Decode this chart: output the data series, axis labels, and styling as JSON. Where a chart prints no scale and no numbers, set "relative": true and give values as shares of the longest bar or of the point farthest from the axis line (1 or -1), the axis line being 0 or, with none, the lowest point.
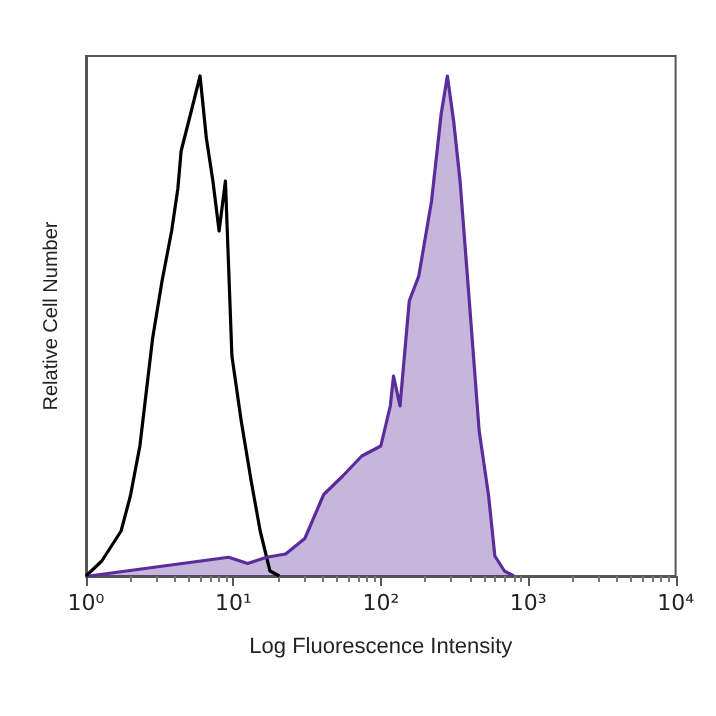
{
  "chart_data": {
    "type": "line",
    "xlabel": "Log Fluorescence Intensity",
    "ylabel": "Relative Cell Number",
    "log": "x",
    "relative": true,
    "xlim": [
      1,
      10000
    ],
    "xticks": [
      {
        "value": 1,
        "label": "10⁰"
      },
      {
        "value": 10,
        "label": "10¹"
      },
      {
        "value": 100,
        "label": "10²"
      },
      {
        "value": 1000,
        "label": "10³"
      },
      {
        "value": 10000,
        "label": "10⁴"
      }
    ],
    "grid": false,
    "marker": "none",
    "line_style": "solid",
    "series": [
      {
        "color": "#000000",
        "x": [
          1,
          1.28,
          1.73,
          2.0,
          2.32,
          2.83,
          3.28,
          3.81,
          4.2,
          4.42,
          5.13,
          5.94,
          6.56,
          7.26,
          8.0,
          8.83,
          9.77,
          11.3,
          13.2,
          15.2,
          17.7,
          20.5
        ],
        "values": [
          0,
          0.03,
          0.09,
          0.16,
          0.26,
          0.475,
          0.59,
          0.69,
          0.775,
          0.85,
          0.925,
          1.0,
          0.875,
          0.79,
          0.69,
          0.79,
          0.44,
          0.31,
          0.19,
          0.09,
          0.01,
          0
        ]
      },
      {
        "type": "area",
        "color": "#5b2d9c",
        "x": [
          1.05,
          9.29,
          12.5,
          16.8,
          22.6,
          30.5,
          41.0,
          55.2,
          74.3,
          100,
          116,
          122,
          135,
          156,
          181,
          221,
          257,
          283,
          312,
          345,
          401,
          465,
          539,
          594,
          690,
          800
        ],
        "values": [
          0,
          0.0375,
          0.025,
          0.0375,
          0.044,
          0.075,
          0.163,
          0.2,
          0.24,
          0.26,
          0.34,
          0.4,
          0.34,
          0.55,
          0.6,
          0.75,
          0.925,
          1.0,
          0.91,
          0.79,
          0.54,
          0.29,
          0.16,
          0.04,
          0.01,
          0
        ]
      }
    ]
  }
}
